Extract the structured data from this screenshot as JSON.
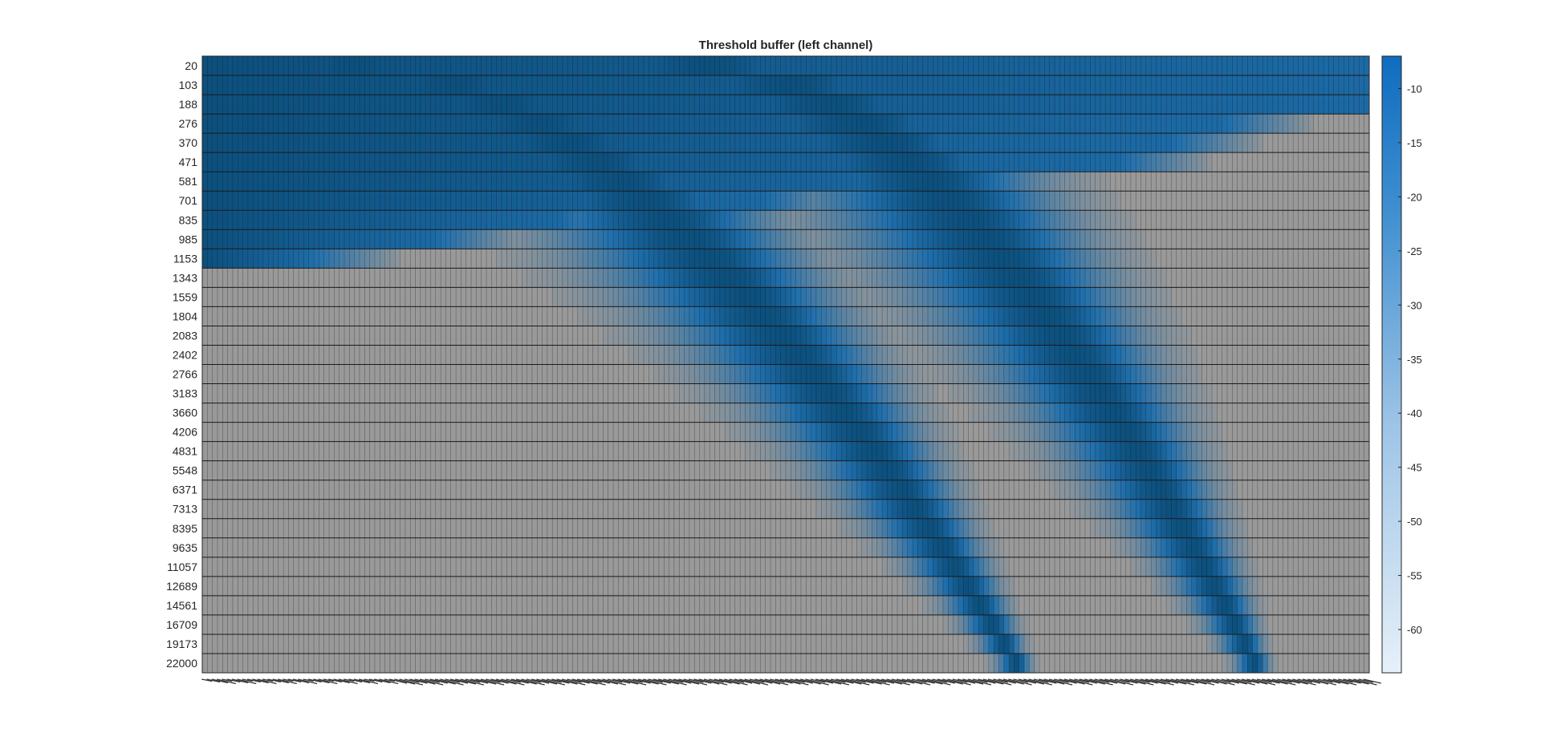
{
  "chart_data": {
    "type": "heatmap",
    "title": "Threshold buffer (left channel)",
    "xlabel": "",
    "ylabel": "",
    "y_tick_labels": [
      "20",
      "103",
      "188",
      "276",
      "370",
      "471",
      "581",
      "701",
      "835",
      "985",
      "1153",
      "1343",
      "1559",
      "1804",
      "2083",
      "2402",
      "2766",
      "3183",
      "3660",
      "4206",
      "4831",
      "5548",
      "6371",
      "7313",
      "8395",
      "9635",
      "11057",
      "12689",
      "14561",
      "16709",
      "19173",
      "22000"
    ],
    "x_columns": 230,
    "x_tick_labels_legible": false,
    "colorbar": {
      "ticks": [
        -10,
        -15,
        -20,
        -25,
        -30,
        -35,
        -40,
        -45,
        -50,
        -55,
        -60
      ],
      "range": [
        -64,
        -7
      ],
      "colormap": "white-to-blue",
      "placement": "right"
    },
    "background_value_color": "#999999",
    "bands": [
      {
        "description": "first threshold ridge",
        "column_at_top": 30,
        "column_at_bottom": 160
      },
      {
        "description": "second threshold ridge",
        "column_at_top": 100,
        "column_at_bottom": 207
      }
    ],
    "grid": true
  },
  "colors": {
    "dark_blue": "#0c507e",
    "mid_blue": "#1f6fad",
    "light_blue": "#ddeaf6",
    "background_cell": "#999999",
    "grid_line": "#1a1a1a"
  }
}
